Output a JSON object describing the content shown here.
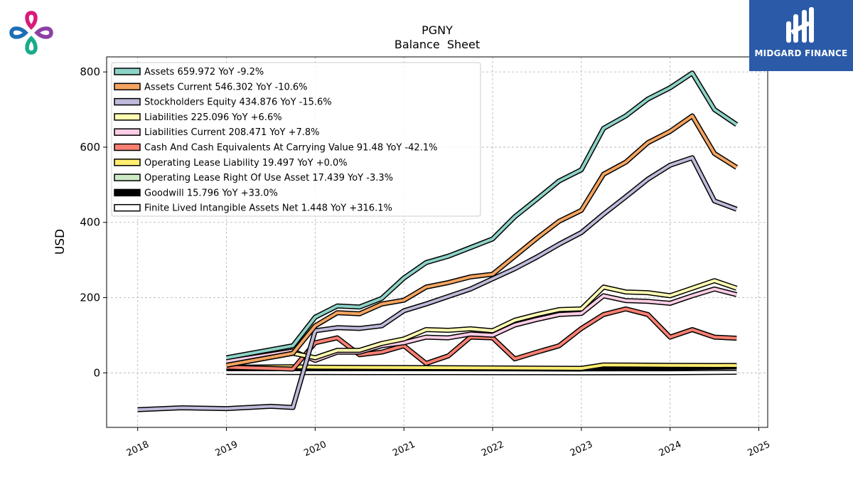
{
  "brand": {
    "name": "MIDGARD FINANCE"
  },
  "colors": {
    "Assets": "#8dd3c7",
    "Assets Current": "#f4a460",
    "Stockholders Equity": "#bebada",
    "Liabilities": "#ffffb3",
    "Liabilities Current": "#fccde5",
    "Cash And Cash Equivalents At Carrying Value": "#fb8072",
    "Operating Lease Liability": "#ffed6f",
    "Operating Lease Right Of Use Asset": "#ccebc5",
    "Goodwill": "#000000",
    "Finite Lived Intangible Assets Net": "#ffffff"
  },
  "chart_data": {
    "type": "line",
    "title": "PGNY",
    "subtitle": "Balance  Sheet",
    "ylabel": "USD",
    "xlim": [
      2017.65,
      2025.1
    ],
    "ylim": [
      -145,
      840
    ],
    "xticks": [
      "2018",
      "2019",
      "2020",
      "2021",
      "2022",
      "2023",
      "2024",
      "2025"
    ],
    "yticks": [
      "0",
      "200",
      "400",
      "600",
      "800"
    ],
    "grid": true,
    "legend_position": "top-left",
    "series": [
      {
        "name": "Assets",
        "legend": "Assets  659.972 YoY -9.2%",
        "x": [
          2019.0,
          2019.75,
          2020.0,
          2020.25,
          2020.5,
          2020.75,
          2021.0,
          2021.25,
          2021.5,
          2021.75,
          2022.0,
          2022.25,
          2022.5,
          2022.75,
          2023.0,
          2023.25,
          2023.5,
          2023.75,
          2024.0,
          2024.25,
          2024.5,
          2024.75
        ],
        "y": [
          40,
          72,
          148,
          178,
          175,
          198,
          252,
          293,
          310,
          333,
          356,
          415,
          462,
          510,
          540,
          650,
          683,
          728,
          758,
          797,
          700,
          660
        ]
      },
      {
        "name": "Assets Current",
        "legend": "Assets Current  546.302 YoY -10.6%",
        "x": [
          2019.0,
          2019.75,
          2020.0,
          2020.25,
          2020.5,
          2020.75,
          2021.0,
          2021.25,
          2021.5,
          2021.75,
          2022.0,
          2022.25,
          2022.5,
          2022.75,
          2023.0,
          2023.25,
          2023.5,
          2023.75,
          2024.0,
          2024.25,
          2024.5,
          2024.75
        ],
        "y": [
          20,
          52,
          125,
          160,
          157,
          183,
          193,
          228,
          240,
          255,
          262,
          310,
          358,
          403,
          432,
          528,
          560,
          612,
          642,
          683,
          583,
          546
        ]
      },
      {
        "name": "Stockholders Equity",
        "legend": "Stockholders Equity  434.876 YoY -15.6%",
        "x": [
          2018.0,
          2018.5,
          2019.0,
          2019.5,
          2019.75,
          2020.0,
          2020.25,
          2020.5,
          2020.75,
          2021.0,
          2021.25,
          2021.5,
          2021.75,
          2022.0,
          2022.25,
          2022.5,
          2022.75,
          2023.0,
          2023.25,
          2023.5,
          2023.75,
          2024.0,
          2024.25,
          2024.5,
          2024.75
        ],
        "y": [
          -98,
          -93,
          -95,
          -89,
          -92,
          112,
          120,
          118,
          125,
          165,
          183,
          203,
          223,
          250,
          277,
          308,
          342,
          373,
          422,
          468,
          515,
          552,
          572,
          457,
          435
        ]
      },
      {
        "name": "Liabilities",
        "legend": "Liabilities  225.096 YoY +6.6%",
        "x": [
          2019.0,
          2019.75,
          2020.0,
          2020.25,
          2020.5,
          2020.75,
          2021.0,
          2021.25,
          2021.5,
          2021.75,
          2022.0,
          2022.25,
          2022.5,
          2022.75,
          2023.0,
          2023.25,
          2023.5,
          2023.75,
          2024.0,
          2024.25,
          2024.5,
          2024.75
        ],
        "y": [
          20,
          52,
          40,
          60,
          60,
          78,
          90,
          115,
          113,
          117,
          112,
          140,
          155,
          168,
          170,
          228,
          215,
          213,
          205,
          225,
          245,
          225
        ]
      },
      {
        "name": "Liabilities Current",
        "legend": "Liabilities Current  208.471 YoY +7.8%",
        "x": [
          2019.0,
          2019.75,
          2020.0,
          2020.25,
          2020.5,
          2020.75,
          2021.0,
          2021.25,
          2021.5,
          2021.75,
          2022.0,
          2022.25,
          2022.5,
          2022.75,
          2023.0,
          2023.25,
          2023.5,
          2023.75,
          2024.0,
          2024.25,
          2024.5,
          2024.75
        ],
        "y": [
          30,
          58,
          33,
          55,
          55,
          72,
          80,
          95,
          93,
          103,
          100,
          127,
          142,
          155,
          158,
          205,
          192,
          190,
          185,
          205,
          223,
          208
        ]
      },
      {
        "name": "Cash And Cash Equivalents At Carrying Value",
        "legend": "Cash And Cash Equivalents At Carrying Value  91.48 YoY -42.1%",
        "x": [
          2019.0,
          2019.75,
          2020.0,
          2020.25,
          2020.5,
          2020.75,
          2021.0,
          2021.25,
          2021.5,
          2021.75,
          2022.0,
          2022.25,
          2022.5,
          2022.75,
          2023.0,
          2023.25,
          2023.5,
          2023.75,
          2024.0,
          2024.25,
          2024.5,
          2024.75
        ],
        "y": [
          15,
          10,
          80,
          93,
          48,
          55,
          72,
          25,
          45,
          95,
          93,
          37,
          55,
          72,
          118,
          155,
          170,
          155,
          95,
          115,
          95,
          92
        ]
      },
      {
        "name": "Operating Lease Liability",
        "legend": "Operating Lease Liability  19.497 YoY +0.0%",
        "x": [
          2019.0,
          2019.75,
          2020.0,
          2021.0,
          2022.0,
          2023.0,
          2023.25,
          2024.0,
          2024.75
        ],
        "y": [
          15,
          16,
          15,
          14,
          13,
          12,
          21,
          20,
          19.5
        ]
      },
      {
        "name": "Operating Lease Right Of Use Asset",
        "legend": "Operating Lease Right Of Use Asset  17.439 YoY -3.3%",
        "x": [
          2019.0,
          2019.75,
          2020.0,
          2021.0,
          2022.0,
          2023.0,
          2023.25,
          2024.0,
          2024.75
        ],
        "y": [
          13,
          14,
          13,
          12,
          11,
          10,
          19,
          18,
          17.4
        ]
      },
      {
        "name": "Goodwill",
        "legend": "Goodwill  15.796 YoY +33.0%",
        "x": [
          2019.0,
          2019.75,
          2020.0,
          2021.0,
          2022.0,
          2023.0,
          2024.0,
          2024.75
        ],
        "y": [
          11,
          11,
          11,
          11,
          11,
          11,
          13,
          15.8
        ]
      },
      {
        "name": "Finite Lived Intangible Assets Net",
        "legend": "Finite Lived Intangible Assets Net  1.448 YoY +316.1%",
        "x": [
          2019.0,
          2020.0,
          2021.0,
          2022.0,
          2023.0,
          2024.0,
          2024.75
        ],
        "y": [
          1,
          0.8,
          0.5,
          0.3,
          0.2,
          0.4,
          1.45
        ]
      }
    ]
  }
}
